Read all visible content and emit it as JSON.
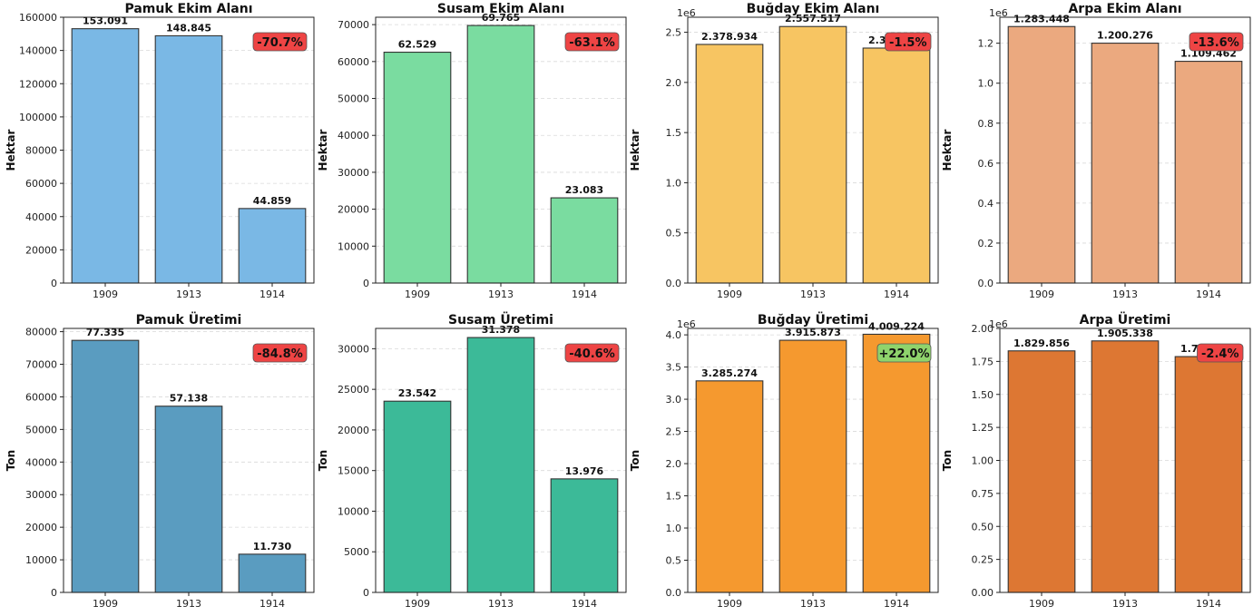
{
  "chart_data": [
    {
      "type": "bar",
      "title": "Pamuk Ekim Alanı",
      "ylabel": "Hektar",
      "categories": [
        "1909",
        "1913",
        "1914"
      ],
      "values": [
        153091,
        148845,
        44859
      ],
      "value_labels": [
        "153.091",
        "148.845",
        "44.859"
      ],
      "ylim": [
        0,
        160000
      ],
      "yticks": [
        0,
        20000,
        40000,
        60000,
        80000,
        100000,
        120000,
        140000,
        160000
      ],
      "ytick_labels": [
        "0",
        "20000",
        "40000",
        "60000",
        "80000",
        "100000",
        "120000",
        "140000",
        "160000"
      ],
      "offset_label": "",
      "color": "#7ab8e5",
      "badge": "-70.7%",
      "badge_color": "#ee4444",
      "grid": true
    },
    {
      "type": "bar",
      "title": "Susam Ekim Alanı",
      "ylabel": "Hektar",
      "categories": [
        "1909",
        "1913",
        "1914"
      ],
      "values": [
        62529,
        69765,
        23083
      ],
      "value_labels": [
        "62.529",
        "69.765",
        "23.083"
      ],
      "ylim": [
        0,
        72000
      ],
      "yticks": [
        0,
        10000,
        20000,
        30000,
        40000,
        50000,
        60000,
        70000
      ],
      "ytick_labels": [
        "0",
        "10000",
        "20000",
        "30000",
        "40000",
        "50000",
        "60000",
        "70000"
      ],
      "offset_label": "",
      "color": "#7adca0",
      "badge": "-63.1%",
      "badge_color": "#ee4444",
      "grid": true
    },
    {
      "type": "bar",
      "title": "Buğday Ekim Alanı",
      "ylabel": "Hektar",
      "categories": [
        "1909",
        "1913",
        "1914"
      ],
      "values": [
        2.378934,
        2.557517,
        2.342541
      ],
      "value_labels": [
        "2.378.934",
        "2.557.517",
        "2.342.541"
      ],
      "ylim": [
        0,
        2.65
      ],
      "yticks": [
        0,
        0.5,
        1.0,
        1.5,
        2.0,
        2.5
      ],
      "ytick_labels": [
        "0.0",
        "0.5",
        "1.0",
        "1.5",
        "2.0",
        "2.5"
      ],
      "offset_label": "1e6",
      "color": "#f7c562",
      "badge": "-1.5%",
      "badge_color": "#ee4444",
      "grid": true
    },
    {
      "type": "bar",
      "title": "Arpa Ekim Alanı",
      "ylabel": "Hektar",
      "categories": [
        "1909",
        "1913",
        "1914"
      ],
      "values": [
        1.283448,
        1.200276,
        1.109462
      ],
      "value_labels": [
        "1.283.448",
        "1.200.276",
        "1.109.462"
      ],
      "ylim": [
        0,
        1.33
      ],
      "yticks": [
        0,
        0.2,
        0.4,
        0.6,
        0.8,
        1.0,
        1.2
      ],
      "ytick_labels": [
        "0.0",
        "0.2",
        "0.4",
        "0.6",
        "0.8",
        "1.0",
        "1.2"
      ],
      "offset_label": "1e6",
      "color": "#eba97f",
      "badge": "-13.6%",
      "badge_color": "#ee4444",
      "grid": true
    },
    {
      "type": "bar",
      "title": "Pamuk Üretimi",
      "ylabel": "Ton",
      "categories": [
        "1909",
        "1913",
        "1914"
      ],
      "values": [
        77335,
        57138,
        11730
      ],
      "value_labels": [
        "77.335",
        "57.138",
        "11.730"
      ],
      "ylim": [
        0,
        81000
      ],
      "yticks": [
        0,
        10000,
        20000,
        30000,
        40000,
        50000,
        60000,
        70000,
        80000
      ],
      "ytick_labels": [
        "0",
        "10000",
        "20000",
        "30000",
        "40000",
        "50000",
        "60000",
        "70000",
        "80000"
      ],
      "offset_label": "",
      "color": "#5a9cc0",
      "badge": "-84.8%",
      "badge_color": "#ee4444",
      "grid": true
    },
    {
      "type": "bar",
      "title": "Susam Üretimi",
      "ylabel": "Ton",
      "categories": [
        "1909",
        "1913",
        "1914"
      ],
      "values": [
        23542,
        31378,
        13976
      ],
      "value_labels": [
        "23.542",
        "31.378",
        "13.976"
      ],
      "ylim": [
        0,
        32500
      ],
      "yticks": [
        0,
        5000,
        10000,
        15000,
        20000,
        25000,
        30000
      ],
      "ytick_labels": [
        "0",
        "5000",
        "10000",
        "15000",
        "20000",
        "25000",
        "30000"
      ],
      "offset_label": "",
      "color": "#3cba98",
      "badge": "-40.6%",
      "badge_color": "#ee4444",
      "grid": true
    },
    {
      "type": "bar",
      "title": "Buğday Üretimi",
      "ylabel": "Ton",
      "categories": [
        "1909",
        "1913",
        "1914"
      ],
      "values": [
        3.285274,
        3.915873,
        4.009224
      ],
      "value_labels": [
        "3.285.274",
        "3.915.873",
        "4.009.224"
      ],
      "ylim": [
        0,
        4.1
      ],
      "yticks": [
        0,
        0.5,
        1.0,
        1.5,
        2.0,
        2.5,
        3.0,
        3.5,
        4.0
      ],
      "ytick_labels": [
        "0.0",
        "0.5",
        "1.0",
        "1.5",
        "2.0",
        "2.5",
        "3.0",
        "3.5",
        "4.0"
      ],
      "offset_label": "1e6",
      "color": "#f5992f",
      "badge": "+22.0%",
      "badge_color": "#8fd36c",
      "grid": true
    },
    {
      "type": "bar",
      "title": "Arpa Üretimi",
      "ylabel": "Ton",
      "categories": [
        "1909",
        "1913",
        "1914"
      ],
      "values": [
        1.829856,
        1.905338,
        1.786545
      ],
      "value_labels": [
        "1.829.856",
        "1.905.338",
        "1.786.545"
      ],
      "ylim": [
        0,
        2.0
      ],
      "yticks": [
        0,
        0.25,
        0.5,
        0.75,
        1.0,
        1.25,
        1.5,
        1.75,
        2.0
      ],
      "ytick_labels": [
        "0.00",
        "0.25",
        "0.50",
        "0.75",
        "1.00",
        "1.25",
        "1.50",
        "1.75",
        "2.00"
      ],
      "offset_label": "1e6",
      "color": "#dd7733",
      "badge": "-2.4%",
      "badge_color": "#ee4444",
      "grid": true
    }
  ]
}
